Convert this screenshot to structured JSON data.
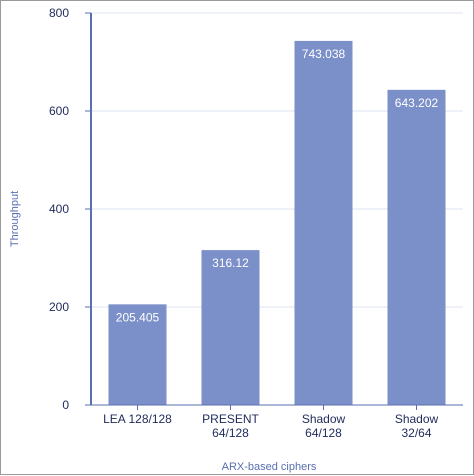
{
  "chart_data": {
    "type": "bar",
    "categories": [
      "LEA 128/128",
      "PRESENT\n64/128",
      "Shadow\n64/128",
      "Shadow\n32/64"
    ],
    "values": [
      205.405,
      316.12,
      743.038,
      643.202
    ],
    "value_labels": [
      "205.405",
      "316.12",
      "743.038",
      "643.202"
    ],
    "xlabel": "ARX-based ciphers",
    "ylabel": "Throughput",
    "ylim": [
      0,
      800
    ],
    "yticks": [
      0,
      200,
      400,
      600,
      800
    ],
    "grid": true,
    "legend": "none",
    "bar_color": "#7b8fc9",
    "axis_color": "#5a6fb0",
    "grid_color": "#dde3f2"
  }
}
